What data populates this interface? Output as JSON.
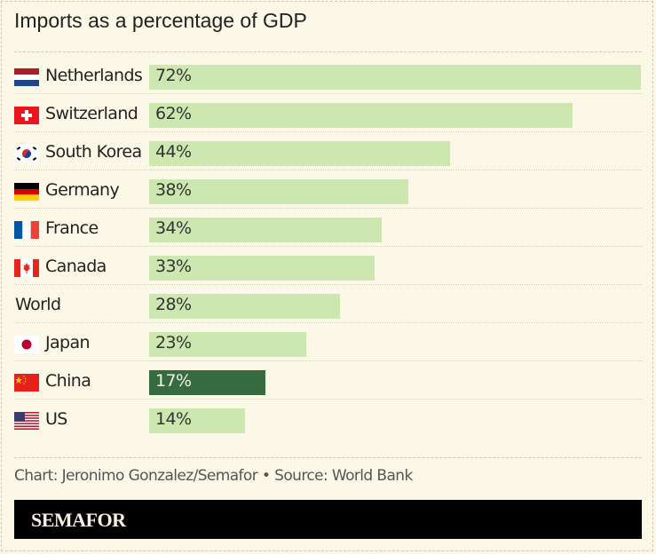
{
  "chart_data": {
    "type": "bar",
    "orientation": "horizontal",
    "title": "Imports as a percentage of GDP",
    "categories": [
      "Netherlands",
      "Switzerland",
      "South Korea",
      "Germany",
      "France",
      "Canada",
      "World",
      "Japan",
      "China",
      "US"
    ],
    "values": [
      72,
      62,
      44,
      38,
      34,
      33,
      28,
      23,
      17,
      14
    ],
    "value_labels": [
      "72%",
      "62%",
      "44%",
      "38%",
      "34%",
      "33%",
      "28%",
      "23%",
      "17%",
      "14%"
    ],
    "flags": [
      "netherlands-flag",
      "switzerland-flag",
      "south-korea-flag",
      "germany-flag",
      "france-flag",
      "canada-flag",
      "",
      "japan-flag",
      "china-flag",
      "us-flag"
    ],
    "highlight": "China",
    "xlim": [
      0,
      72
    ],
    "grid": false,
    "colors": {
      "bar": "#cde7b0",
      "highlight": "#356b3e",
      "background": "#fbf8e7"
    }
  },
  "footer": {
    "credit": "Chart: Jeronimo Gonzalez/Semafor • Source: World Bank"
  },
  "brand": {
    "logo": "SEMAFOR"
  }
}
